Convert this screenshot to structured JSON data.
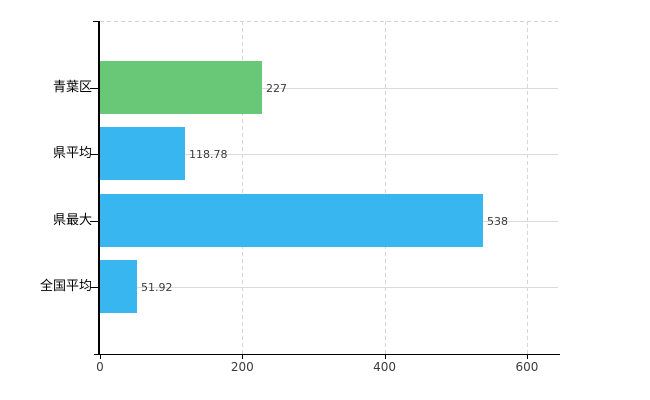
{
  "chart_data": {
    "type": "bar",
    "orientation": "horizontal",
    "title": "",
    "categories": [
      "青葉区",
      "県平均",
      "県最大",
      "全国平均"
    ],
    "values": [
      227,
      118.78,
      538,
      51.92
    ],
    "value_labels": [
      "227",
      "118.78",
      "538",
      "51.92"
    ],
    "series": [
      {
        "name": "値",
        "values": [
          227,
          118.78,
          538,
          51.92
        ]
      }
    ],
    "bar_colors": [
      "#68c878",
      "#38b6ef",
      "#38b6ef",
      "#38b6ef"
    ],
    "x_ticks": [
      0,
      200,
      400,
      600
    ],
    "x_tick_labels": [
      "0",
      "200",
      "400",
      "600"
    ],
    "xlim": [
      0,
      644
    ],
    "grid": true,
    "legend": null,
    "xlabel": "",
    "ylabel": ""
  },
  "colors": {
    "bar_green": "#68c878",
    "bar_blue": "#38b6ef",
    "axis": "#000000",
    "gridline": "#d8d8d5",
    "value_text": "#3c3c3c",
    "category_text": "#000000",
    "background": "#ffffff"
  }
}
